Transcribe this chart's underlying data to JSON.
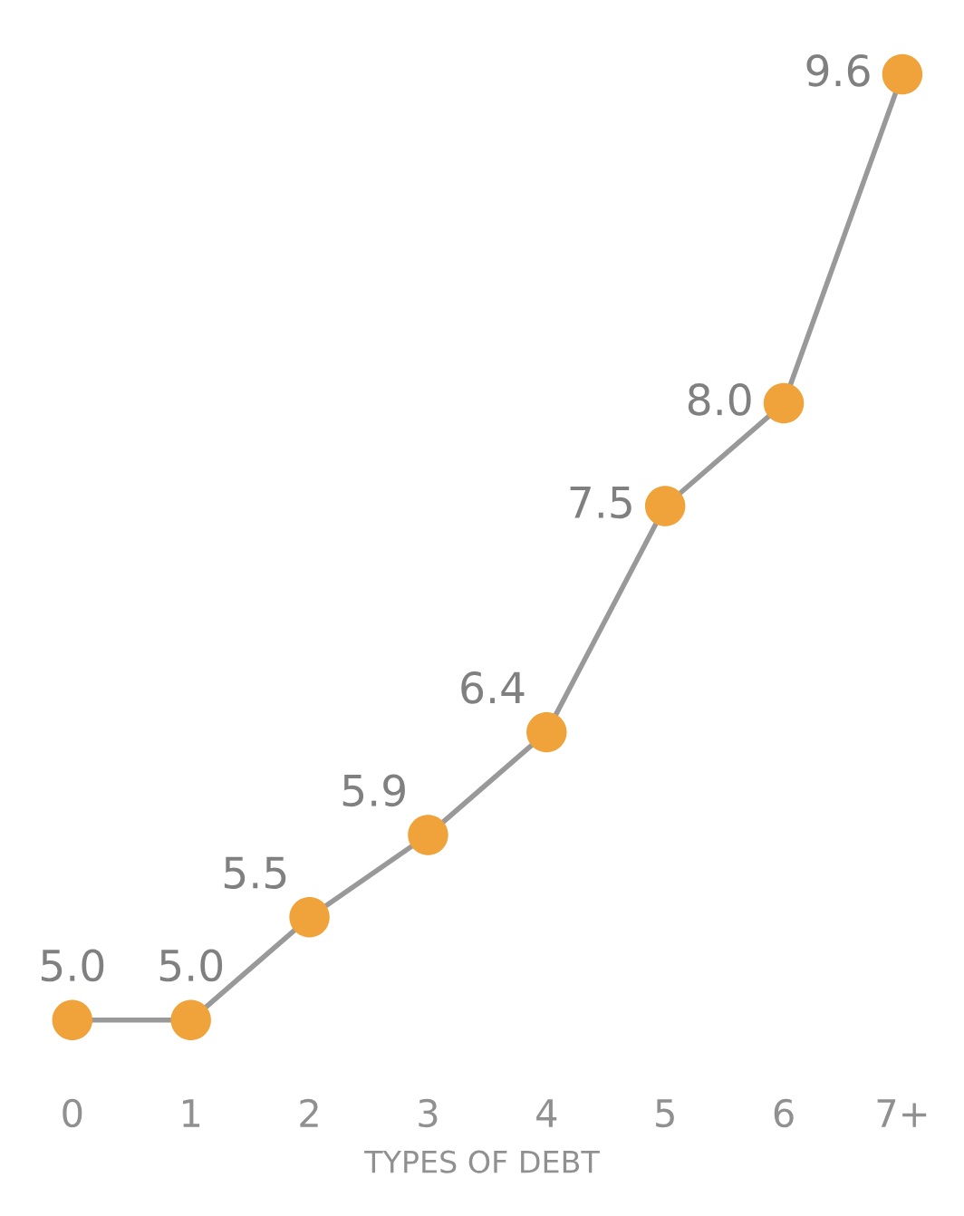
{
  "chart_data": {
    "type": "line",
    "xlabel": "TYPES OF DEBT",
    "categories": [
      "0",
      "1",
      "2",
      "3",
      "4",
      "5",
      "6",
      "7+"
    ],
    "series": [
      {
        "color": "#f0a33a",
        "values": [
          5.0,
          5.0,
          5.5,
          5.9,
          6.4,
          7.5,
          8.0,
          9.6
        ],
        "value_labels": [
          "5.0",
          "5.0",
          "5.5",
          "5.9",
          "6.4",
          "7.5",
          "8.0",
          "9.6"
        ]
      }
    ],
    "marker": "circle",
    "line_style": "solid",
    "grid": false,
    "legend": false
  }
}
